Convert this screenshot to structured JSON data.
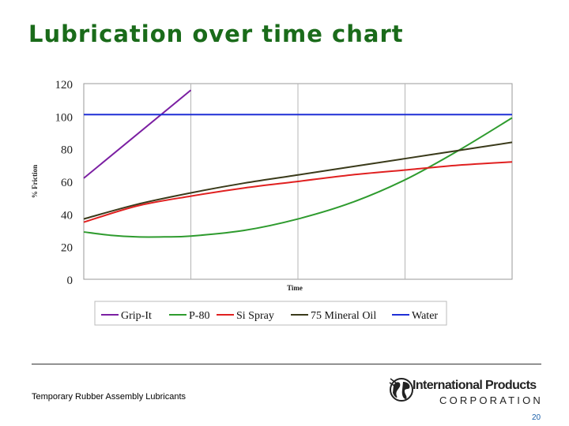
{
  "slide": {
    "title": "Lubrication over time chart",
    "footer_text": "Temporary Rubber Assembly Lubricants",
    "page_number": "20",
    "logo": {
      "name": "International Products",
      "corporation": "CORPORATION",
      "icon": "globe-icon"
    }
  },
  "chart_data": {
    "type": "line",
    "title": "",
    "xlabel": "Time",
    "ylabel": "% Friction",
    "xlim": [
      0,
      4
    ],
    "ylim": [
      0,
      120
    ],
    "yticks": [
      0,
      20,
      40,
      60,
      80,
      100,
      120
    ],
    "grid": {
      "vertical": true,
      "horizontal": false
    },
    "legend_position": "bottom",
    "series": [
      {
        "name": "Grip-It",
        "color": "#7b1fa2",
        "x": [
          0,
          1.0
        ],
        "y": [
          62,
          116
        ]
      },
      {
        "name": "P-80",
        "color": "#2e9b2e",
        "x": [
          0,
          0.25,
          0.5,
          0.75,
          1.0,
          1.5,
          2.0,
          2.5,
          3.0,
          3.5,
          4.0
        ],
        "y": [
          29,
          27,
          26,
          26,
          26.5,
          30,
          37,
          47,
          61,
          79,
          99
        ]
      },
      {
        "name": "Si Spray",
        "color": "#e02020",
        "x": [
          0,
          0.5,
          1.0,
          1.5,
          2.0,
          2.5,
          3.0,
          3.5,
          4.0
        ],
        "y": [
          35,
          45,
          51,
          56,
          60,
          64,
          67,
          70,
          72
        ]
      },
      {
        "name": "75 Mineral Oil",
        "color": "#3a3a1a",
        "x": [
          0,
          0.5,
          1.0,
          1.5,
          2.0,
          2.5,
          3.0,
          3.5,
          4.0
        ],
        "y": [
          37,
          46,
          53,
          59,
          64,
          69,
          74,
          79,
          84
        ]
      },
      {
        "name": "Water",
        "color": "#1f2fd6",
        "x": [
          0,
          4.0
        ],
        "y": [
          101,
          101
        ]
      }
    ]
  }
}
